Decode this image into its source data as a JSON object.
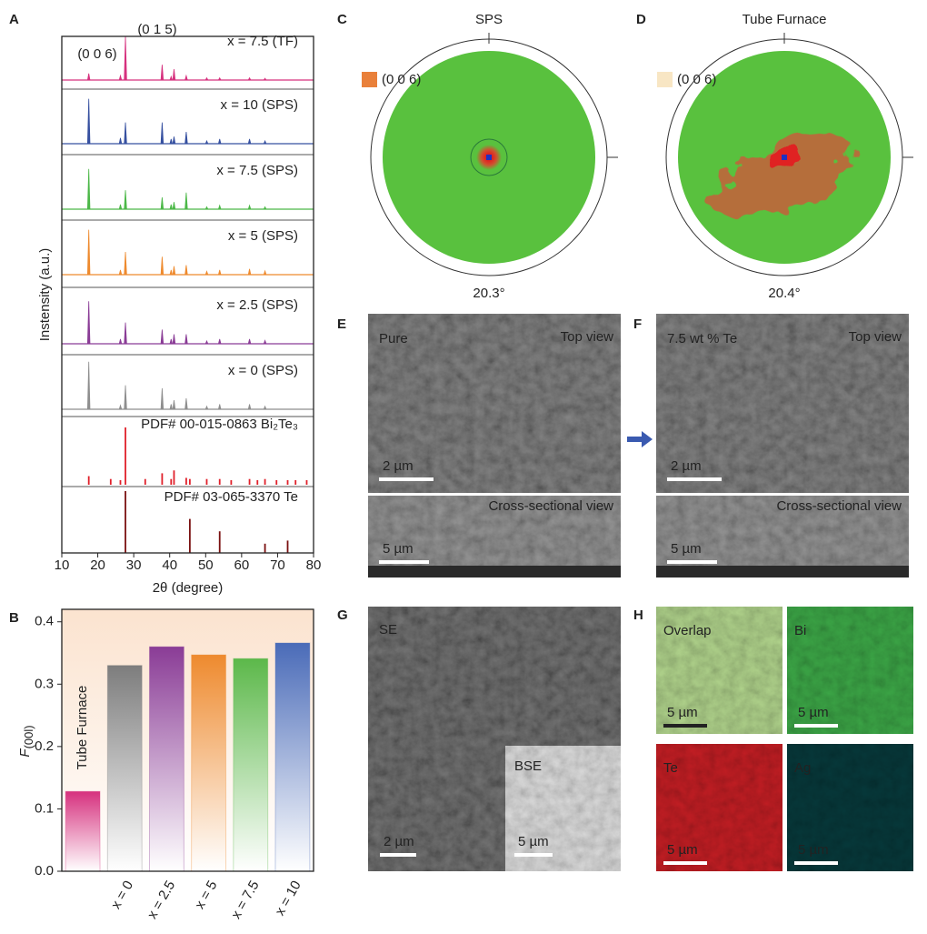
{
  "chart_data": [
    {
      "type": "line",
      "ylabel": "Instensity (a.u.)",
      "xlabel": "2θ (degree)",
      "xlim": [
        10,
        80
      ],
      "xticks": [
        10,
        20,
        30,
        40,
        50,
        60,
        70,
        80
      ],
      "annotations": [
        "(0 0 6)",
        "(0 1 5)"
      ],
      "x": [
        17.5,
        23.6,
        26.3,
        27.7,
        33.2,
        37.9,
        40.4,
        41.2,
        44.6,
        45.6,
        50.3,
        53.9,
        57.1,
        62.2,
        64.4,
        66.5,
        69.7,
        72.8,
        75.0,
        78.1
      ],
      "series": [
        {
          "name": "x = 7.5 (TF)",
          "color": "#d6317e",
          "values": [
            0.15,
            null,
            0.1,
            1.0,
            null,
            0.35,
            0.08,
            0.25,
            0.1,
            null,
            0.05,
            0.05,
            null,
            0.05,
            null,
            0.04,
            null,
            null,
            null,
            null
          ]
        },
        {
          "name": "x = 10 (SPS)",
          "color": "#3650a0",
          "values": [
            0.95,
            null,
            0.12,
            0.45,
            null,
            0.45,
            0.1,
            0.15,
            0.25,
            null,
            0.06,
            0.1,
            null,
            0.1,
            null,
            0.06,
            null,
            null,
            null,
            null
          ]
        },
        {
          "name": "x = 7.5 (SPS)",
          "color": "#4cb848",
          "values": [
            0.85,
            null,
            0.1,
            0.4,
            null,
            0.25,
            0.1,
            0.15,
            0.35,
            null,
            0.05,
            0.08,
            null,
            0.08,
            null,
            0.05,
            null,
            null,
            null,
            null
          ]
        },
        {
          "name": "x = 5 (SPS)",
          "color": "#ee8a2e",
          "values": [
            0.95,
            null,
            0.1,
            0.48,
            null,
            0.38,
            0.1,
            0.18,
            0.2,
            null,
            0.07,
            0.1,
            null,
            0.12,
            null,
            0.08,
            null,
            null,
            null,
            null
          ]
        },
        {
          "name": "x = 2.5 (SPS)",
          "color": "#8a3c96",
          "values": [
            0.9,
            null,
            0.1,
            0.45,
            null,
            0.3,
            0.1,
            0.2,
            0.2,
            null,
            0.06,
            0.1,
            null,
            0.1,
            null,
            0.07,
            null,
            null,
            null,
            null
          ]
        },
        {
          "name": "x = 0 (SPS)",
          "color": "#8e8e8e",
          "values": [
            0.95,
            null,
            0.08,
            0.48,
            null,
            0.42,
            0.1,
            0.18,
            0.22,
            null,
            0.06,
            0.1,
            null,
            0.1,
            null,
            0.06,
            null,
            null,
            null,
            null
          ]
        },
        {
          "name": "PDF# 00-015-0863 Bi₂Te₃",
          "color": "#e0202a",
          "values": [
            0.15,
            0.1,
            0.08,
            1.0,
            0.1,
            0.2,
            0.1,
            0.25,
            0.12,
            0.1,
            0.1,
            0.1,
            0.08,
            0.1,
            0.08,
            0.1,
            0.08,
            0.08,
            0.08,
            0.08
          ]
        },
        {
          "name": "PDF# 03-065-3370 Te",
          "color": "#7a1010",
          "values": [
            null,
            null,
            null,
            1.0,
            null,
            null,
            null,
            null,
            null,
            0.55,
            null,
            0.35,
            null,
            null,
            null,
            0.15,
            null,
            0.2,
            null,
            null
          ]
        }
      ]
    },
    {
      "type": "bar",
      "ylabel": {
        "text": "F",
        "subscript": "(00l)"
      },
      "annotation": "Tube Furnace",
      "categories": [
        null,
        "x = 0",
        "x = 2.5",
        "x = 5",
        "x = 7.5",
        "x = 10"
      ],
      "values": [
        0.128,
        0.33,
        0.36,
        0.347,
        0.341,
        0.366
      ],
      "colors": [
        "#d6317e",
        "#7d7d7d",
        "#8a3c96",
        "#ee8a2e",
        "#5cb84a",
        "#4a6bb8"
      ],
      "ylim": [
        0,
        0.42
      ],
      "yticks": [
        {
          "value": 0,
          "label": "0.0"
        },
        0.1,
        0.2,
        0.3,
        0.4
      ]
    }
  ],
  "panels": {
    "labels": [
      "A",
      "B",
      "C",
      "D",
      "E",
      "F",
      "G",
      "H"
    ],
    "C": {
      "title": "SPS",
      "legend": "(0 0 6)",
      "angle": "20.3°"
    },
    "D": {
      "title": "Tube Furnace",
      "legend": "(0 0 6)",
      "angle": "20.4°"
    },
    "E": {
      "label": "Pure",
      "view": "Top view",
      "scale": "2 µm",
      "cross_view": "Cross-sectional view",
      "cross_scale": "5 µm"
    },
    "F": {
      "label": "7.5 wt % Te",
      "view": "Top view",
      "scale": "2 µm",
      "cross_view": "Cross-sectional view",
      "cross_scale": "5 µm"
    },
    "G": {
      "label": "SE",
      "scale": "2 µm",
      "inset_label": "BSE",
      "inset_scale": "5 µm"
    },
    "H": {
      "tiles": [
        {
          "label": "Overlap",
          "scale": "5 µm"
        },
        {
          "label": "Bi",
          "scale": "5 µm"
        },
        {
          "label": "Te",
          "scale": "5 µm"
        },
        {
          "label": "Ag",
          "scale": "5 µm"
        }
      ]
    }
  }
}
